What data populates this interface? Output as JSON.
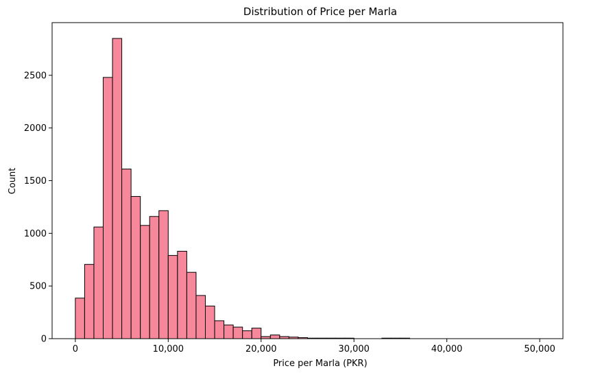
{
  "chart_data": {
    "type": "bar",
    "title": "Distribution of Price per Marla",
    "xlabel": "Price per Marla (PKR)",
    "ylabel": "Count",
    "xlim": [
      -2500,
      52500
    ],
    "ylim": [
      0,
      3000
    ],
    "xticks": [
      {
        "value": 0,
        "label": "0"
      },
      {
        "value": 10000,
        "label": "10,000"
      },
      {
        "value": 20000,
        "label": "20,000"
      },
      {
        "value": 30000,
        "label": "30,000"
      },
      {
        "value": 40000,
        "label": "40,000"
      },
      {
        "value": 50000,
        "label": "50,000"
      }
    ],
    "yticks": [
      {
        "value": 0,
        "label": "0"
      },
      {
        "value": 500,
        "label": "500"
      },
      {
        "value": 1000,
        "label": "1000"
      },
      {
        "value": 1500,
        "label": "1500"
      },
      {
        "value": 2000,
        "label": "2000"
      },
      {
        "value": 2500,
        "label": "2500"
      }
    ],
    "bin_width": 1000,
    "bin_start": 0,
    "values": [
      385,
      705,
      1060,
      2480,
      2850,
      1610,
      1350,
      1075,
      1160,
      1215,
      790,
      830,
      630,
      410,
      310,
      170,
      130,
      110,
      75,
      100,
      20,
      35,
      20,
      15,
      10,
      5,
      5,
      5,
      5,
      5,
      0,
      0,
      0,
      5,
      5,
      5,
      0,
      0,
      0,
      0,
      0,
      0,
      0,
      0,
      0,
      0,
      0,
      0,
      0,
      0
    ],
    "bar_color": "#f7879a",
    "edge_color": "#000000",
    "grid": false
  }
}
